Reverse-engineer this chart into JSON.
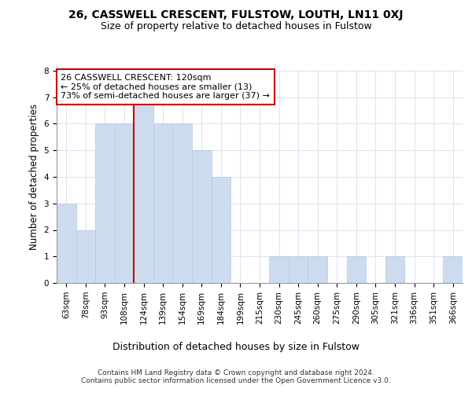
{
  "title1": "26, CASSWELL CRESCENT, FULSTOW, LOUTH, LN11 0XJ",
  "title2": "Size of property relative to detached houses in Fulstow",
  "xlabel": "Distribution of detached houses by size in Fulstow",
  "ylabel": "Number of detached properties",
  "categories": [
    "63sqm",
    "78sqm",
    "93sqm",
    "108sqm",
    "124sqm",
    "139sqm",
    "154sqm",
    "169sqm",
    "184sqm",
    "199sqm",
    "215sqm",
    "230sqm",
    "245sqm",
    "260sqm",
    "275sqm",
    "290sqm",
    "305sqm",
    "321sqm",
    "336sqm",
    "351sqm",
    "366sqm"
  ],
  "values": [
    3,
    2,
    6,
    6,
    7,
    6,
    6,
    5,
    4,
    0,
    0,
    1,
    1,
    1,
    0,
    1,
    0,
    1,
    0,
    0,
    1
  ],
  "bar_color": "#ccdcee",
  "bar_edgecolor": "#b0c8e0",
  "vline_x_index": 4,
  "vline_color": "#cc0000",
  "annotation_line1": "26 CASSWELL CRESCENT: 120sqm",
  "annotation_line2": "← 25% of detached houses are smaller (13)",
  "annotation_line3": "73% of semi-detached houses are larger (37) →",
  "annotation_box_edgecolor": "#cc0000",
  "ylim": [
    0,
    8
  ],
  "yticks": [
    0,
    1,
    2,
    3,
    4,
    5,
    6,
    7,
    8
  ],
  "background_color": "#ffffff",
  "grid_color": "#d0d8e8",
  "footer_text": "Contains HM Land Registry data © Crown copyright and database right 2024.\nContains public sector information licensed under the Open Government Licence v3.0.",
  "title1_fontsize": 10,
  "title2_fontsize": 9,
  "xlabel_fontsize": 9,
  "ylabel_fontsize": 8.5,
  "tick_fontsize": 7.5,
  "annotation_fontsize": 8,
  "footer_fontsize": 6.5
}
